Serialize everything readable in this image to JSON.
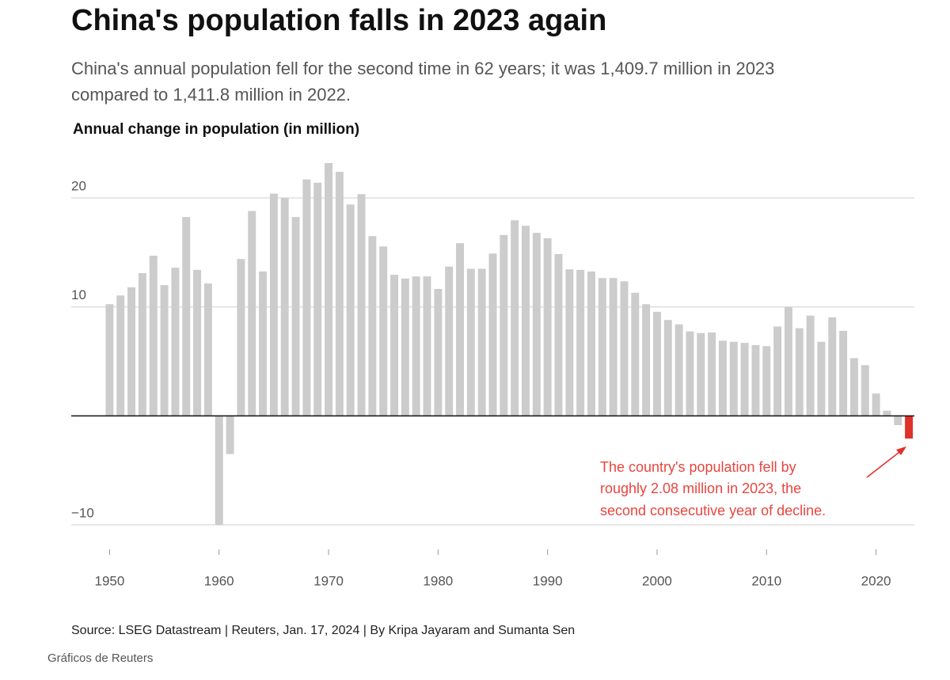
{
  "chart_data": {
    "type": "bar",
    "title": "China's population falls in 2023 again",
    "subtitle": [
      "China's annual population fell for the second time in 62 years; it was 1,409.7 million in 2023",
      "compared to 1,411.8 million in 2022."
    ],
    "y_label": "Annual change in population (in million)",
    "x": [
      1950,
      1951,
      1952,
      1953,
      1954,
      1955,
      1956,
      1957,
      1958,
      1959,
      1960,
      1961,
      1962,
      1963,
      1964,
      1965,
      1966,
      1967,
      1968,
      1969,
      1970,
      1971,
      1972,
      1973,
      1974,
      1975,
      1976,
      1977,
      1978,
      1979,
      1980,
      1981,
      1982,
      1983,
      1984,
      1985,
      1986,
      1987,
      1988,
      1989,
      1990,
      1991,
      1992,
      1993,
      1994,
      1995,
      1996,
      1997,
      1998,
      1999,
      2000,
      2001,
      2002,
      2003,
      2004,
      2005,
      2006,
      2007,
      2008,
      2009,
      2010,
      2011,
      2012,
      2013,
      2014,
      2015,
      2016,
      2017,
      2018,
      2019,
      2020,
      2021,
      2022,
      2023
    ],
    "values": [
      10.25,
      11.05,
      11.8,
      13.1,
      14.7,
      12.0,
      13.6,
      18.25,
      13.4,
      12.15,
      -10.0,
      -3.5,
      14.4,
      18.8,
      13.25,
      20.4,
      20.0,
      18.25,
      21.7,
      21.4,
      23.2,
      22.4,
      19.4,
      20.35,
      16.5,
      15.55,
      12.95,
      12.6,
      12.8,
      12.8,
      11.65,
      13.7,
      15.85,
      13.5,
      13.5,
      14.9,
      16.6,
      17.95,
      17.45,
      16.8,
      16.3,
      14.85,
      13.45,
      13.4,
      13.25,
      12.65,
      12.65,
      12.35,
      11.3,
      10.25,
      9.55,
      8.8,
      8.4,
      7.75,
      7.6,
      7.65,
      6.9,
      6.8,
      6.7,
      6.5,
      6.4,
      8.2,
      10.0,
      8.05,
      9.2,
      6.8,
      9.05,
      7.8,
      5.3,
      4.65,
      2.05,
      0.48,
      -0.85,
      -2.08
    ],
    "colors": [
      "#cccccc",
      "#cccccc",
      "#cccccc",
      "#cccccc",
      "#cccccc",
      "#cccccc",
      "#cccccc",
      "#cccccc",
      "#cccccc",
      "#cccccc",
      "#cccccc",
      "#cccccc",
      "#cccccc",
      "#cccccc",
      "#cccccc",
      "#cccccc",
      "#cccccc",
      "#cccccc",
      "#cccccc",
      "#cccccc",
      "#cccccc",
      "#cccccc",
      "#cccccc",
      "#cccccc",
      "#cccccc",
      "#cccccc",
      "#cccccc",
      "#cccccc",
      "#cccccc",
      "#cccccc",
      "#cccccc",
      "#cccccc",
      "#cccccc",
      "#cccccc",
      "#cccccc",
      "#cccccc",
      "#cccccc",
      "#cccccc",
      "#cccccc",
      "#cccccc",
      "#cccccc",
      "#cccccc",
      "#cccccc",
      "#cccccc",
      "#cccccc",
      "#cccccc",
      "#cccccc",
      "#cccccc",
      "#cccccc",
      "#cccccc",
      "#cccccc",
      "#cccccc",
      "#cccccc",
      "#cccccc",
      "#cccccc",
      "#cccccc",
      "#cccccc",
      "#cccccc",
      "#cccccc",
      "#cccccc",
      "#cccccc",
      "#cccccc",
      "#cccccc",
      "#cccccc",
      "#cccccc",
      "#cccccc",
      "#cccccc",
      "#cccccc",
      "#cccccc",
      "#cccccc",
      "#cccccc",
      "#cccccc",
      "#cccccc",
      "#e0312b"
    ],
    "xlim": [
      1946.5,
      2023.5
    ],
    "xticks": [
      1950,
      1960,
      1970,
      1980,
      1990,
      2000,
      2010,
      2020
    ],
    "ylim": [
      -10,
      24
    ],
    "yticks": [
      {
        "value": -10,
        "label": "−10"
      },
      10,
      20
    ],
    "grid": true,
    "annotation": [
      "The country's population fell by",
      "roughly 2.08 million in 2023, the",
      "second consecutive year of decline."
    ],
    "source": "Source: LSEG Datastream | Reuters, Jan. 17, 2024 | By Kripa Jayaram and Sumanta Sen",
    "credit": "Gráficos de Reuters"
  }
}
